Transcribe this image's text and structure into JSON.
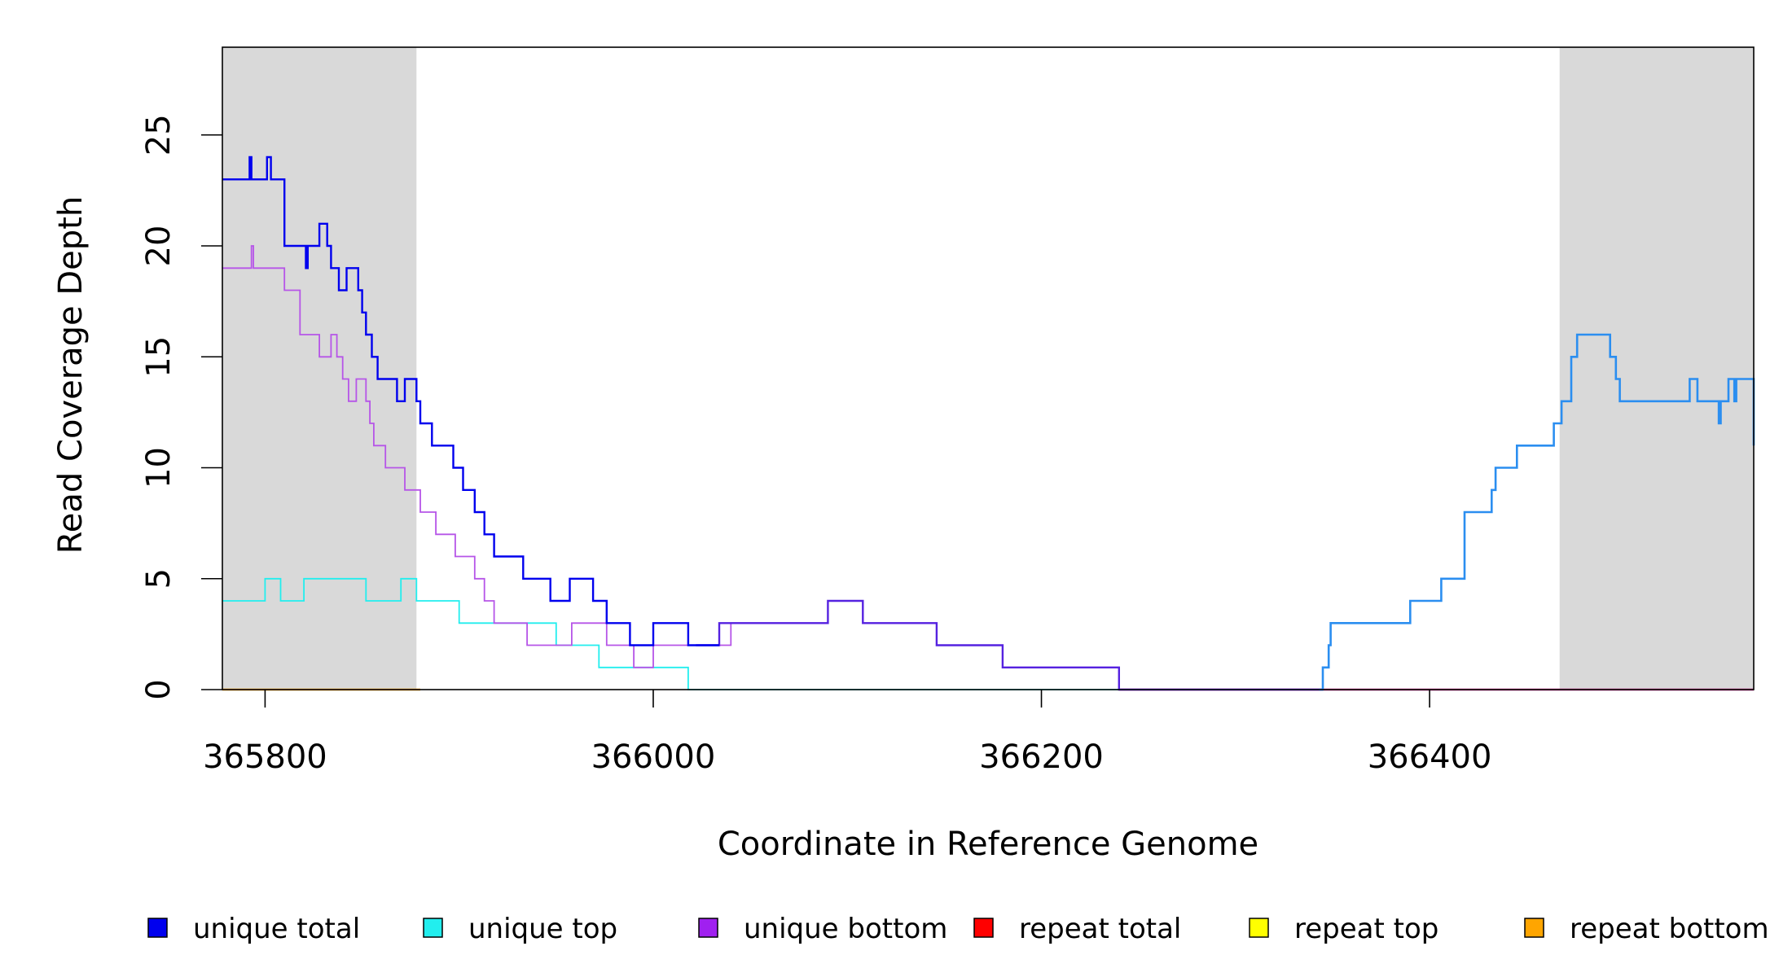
{
  "chart_data": {
    "type": "line",
    "title": "",
    "xlabel": "Coordinate in Reference Genome",
    "ylabel": "Read Coverage Depth",
    "xlim": [
      365778,
      366567
    ],
    "ylim": [
      0,
      29
    ],
    "x_ticks": [
      365800,
      366000,
      366200,
      366400
    ],
    "x_tick_labels": [
      "365800",
      "366000",
      "366200",
      "366400"
    ],
    "y_ticks": [
      0,
      5,
      10,
      15,
      20,
      25
    ],
    "y_tick_labels": [
      "0",
      "5",
      "10",
      "15",
      "20",
      "25"
    ],
    "shaded_regions": [
      [
        365778,
        365878
      ],
      [
        366467,
        366567
      ]
    ],
    "shade_color": "#d9d9d9",
    "grid": false,
    "legend_position": "bottom",
    "legend": [
      {
        "label": "unique total",
        "color": "#0000ee"
      },
      {
        "label": "unique top",
        "color": "#22eeee"
      },
      {
        "label": "unique bottom",
        "color": "#a020f0"
      },
      {
        "label": "repeat total",
        "color": "#ff0000"
      },
      {
        "label": "repeat top",
        "color": "#ffff00"
      },
      {
        "label": "repeat bottom",
        "color": "#ffa500"
      }
    ],
    "series": [
      {
        "key": "repeat_bottom",
        "color": "#ffa500",
        "width": 2.6,
        "points": [
          [
            365778,
            0
          ],
          [
            365880,
            0
          ]
        ]
      },
      {
        "key": "repeat_total_right",
        "color": "#d02090",
        "width": 2.4,
        "points": [
          [
            366240,
            0
          ],
          [
            366567,
            0
          ]
        ]
      },
      {
        "key": "unique_top",
        "color": "#22eeee",
        "width": 1.8,
        "points": [
          [
            365778,
            4
          ],
          [
            365800,
            4
          ],
          [
            365800,
            5
          ],
          [
            365808,
            5
          ],
          [
            365808,
            4
          ],
          [
            365820,
            4
          ],
          [
            365820,
            5
          ],
          [
            365852,
            5
          ],
          [
            365852,
            4
          ],
          [
            365870,
            4
          ],
          [
            365870,
            5
          ],
          [
            365878,
            5
          ],
          [
            365878,
            4
          ],
          [
            365900,
            4
          ],
          [
            365900,
            3
          ],
          [
            365930,
            3
          ],
          [
            365930,
            3
          ],
          [
            365950,
            3
          ],
          [
            365950,
            2
          ],
          [
            365972,
            2
          ],
          [
            365972,
            1
          ],
          [
            366018,
            1
          ],
          [
            366018,
            0
          ],
          [
            366240,
            0
          ]
        ]
      },
      {
        "key": "unique_bottom",
        "color": "#b655e8",
        "width": 1.8,
        "points": [
          [
            365778,
            19
          ],
          [
            365793,
            19
          ],
          [
            365793,
            20
          ],
          [
            365794,
            20
          ],
          [
            365794,
            19
          ],
          [
            365801,
            19
          ],
          [
            365801,
            19
          ],
          [
            365810,
            19
          ],
          [
            365810,
            18
          ],
          [
            365818,
            18
          ],
          [
            365818,
            16
          ],
          [
            365828,
            16
          ],
          [
            365828,
            15
          ],
          [
            365834,
            15
          ],
          [
            365834,
            16
          ],
          [
            365837,
            16
          ],
          [
            365837,
            15
          ],
          [
            365840,
            15
          ],
          [
            365840,
            14
          ],
          [
            365843,
            14
          ],
          [
            365843,
            13
          ],
          [
            365847,
            13
          ],
          [
            365847,
            14
          ],
          [
            365852,
            14
          ],
          [
            365852,
            13
          ],
          [
            365854,
            13
          ],
          [
            365854,
            12
          ],
          [
            365856,
            12
          ],
          [
            365856,
            11
          ],
          [
            365862,
            11
          ],
          [
            365862,
            10
          ],
          [
            365872,
            10
          ],
          [
            365872,
            9
          ],
          [
            365880,
            9
          ],
          [
            365880,
            8
          ],
          [
            365888,
            8
          ],
          [
            365888,
            7
          ],
          [
            365898,
            7
          ],
          [
            365898,
            6
          ],
          [
            365908,
            6
          ],
          [
            365908,
            5
          ],
          [
            365913,
            5
          ],
          [
            365913,
            4
          ],
          [
            365918,
            4
          ],
          [
            365918,
            3
          ],
          [
            365935,
            3
          ],
          [
            365935,
            2
          ],
          [
            365958,
            2
          ],
          [
            365958,
            3
          ],
          [
            365976,
            3
          ],
          [
            365976,
            2
          ],
          [
            365990,
            2
          ],
          [
            365990,
            1
          ],
          [
            366000,
            1
          ],
          [
            366000,
            2
          ],
          [
            366040,
            2
          ],
          [
            366040,
            3
          ],
          [
            366090,
            3
          ],
          [
            366090,
            4
          ],
          [
            366108,
            4
          ],
          [
            366108,
            3
          ],
          [
            366146,
            3
          ],
          [
            366146,
            2
          ],
          [
            366180,
            2
          ],
          [
            366180,
            1
          ],
          [
            366240,
            1
          ],
          [
            366240,
            0
          ]
        ]
      },
      {
        "key": "unique_bottom_overlay",
        "color": "#5522e0",
        "width": 2.4,
        "points": [
          [
            366022,
            2
          ],
          [
            366034,
            2
          ],
          [
            366034,
            3
          ],
          [
            366090,
            3
          ],
          [
            366090,
            4
          ],
          [
            366108,
            4
          ],
          [
            366108,
            3
          ],
          [
            366146,
            3
          ],
          [
            366146,
            2
          ],
          [
            366180,
            2
          ],
          [
            366180,
            1
          ],
          [
            366240,
            1
          ],
          [
            366240,
            0
          ],
          [
            366345,
            0
          ]
        ]
      },
      {
        "key": "unique_total",
        "color": "#0000ee",
        "width": 2.4,
        "points": [
          [
            365778,
            23
          ],
          [
            365792,
            23
          ],
          [
            365792,
            24
          ],
          [
            365793,
            24
          ],
          [
            365793,
            23
          ],
          [
            365801,
            23
          ],
          [
            365801,
            24
          ],
          [
            365803,
            24
          ],
          [
            365803,
            23
          ],
          [
            365808,
            23
          ],
          [
            365808,
            23
          ],
          [
            365810,
            23
          ],
          [
            365810,
            20
          ],
          [
            365821,
            20
          ],
          [
            365821,
            19
          ],
          [
            365822,
            19
          ],
          [
            365822,
            20
          ],
          [
            365828,
            20
          ],
          [
            365828,
            21
          ],
          [
            365832,
            21
          ],
          [
            365832,
            20
          ],
          [
            365834,
            20
          ],
          [
            365834,
            19
          ],
          [
            365838,
            19
          ],
          [
            365838,
            18
          ],
          [
            365842,
            18
          ],
          [
            365842,
            19
          ],
          [
            365848,
            19
          ],
          [
            365848,
            18
          ],
          [
            365850,
            18
          ],
          [
            365850,
            17
          ],
          [
            365852,
            17
          ],
          [
            365852,
            16
          ],
          [
            365855,
            16
          ],
          [
            365855,
            15
          ],
          [
            365858,
            15
          ],
          [
            365858,
            14
          ],
          [
            365868,
            14
          ],
          [
            365868,
            13
          ],
          [
            365872,
            13
          ],
          [
            365872,
            14
          ],
          [
            365878,
            14
          ],
          [
            365878,
            13
          ],
          [
            365880,
            13
          ],
          [
            365880,
            12
          ],
          [
            365886,
            12
          ],
          [
            365886,
            11
          ],
          [
            365897,
            11
          ],
          [
            365897,
            10
          ],
          [
            365902,
            10
          ],
          [
            365902,
            9
          ],
          [
            365908,
            9
          ],
          [
            365908,
            8
          ],
          [
            365913,
            8
          ],
          [
            365913,
            7
          ],
          [
            365918,
            7
          ],
          [
            365918,
            6
          ],
          [
            365933,
            6
          ],
          [
            365933,
            5
          ],
          [
            365947,
            5
          ],
          [
            365947,
            4
          ],
          [
            365957,
            4
          ],
          [
            365957,
            5
          ],
          [
            365969,
            5
          ],
          [
            365969,
            4
          ],
          [
            365976,
            4
          ],
          [
            365976,
            3
          ],
          [
            365988,
            3
          ],
          [
            365988,
            2
          ],
          [
            366000,
            2
          ],
          [
            366000,
            3
          ],
          [
            366018,
            3
          ],
          [
            366018,
            2
          ],
          [
            366034,
            2
          ]
        ]
      },
      {
        "key": "unique_total_right",
        "color": "#2b8ef0",
        "width": 2.6,
        "points": [
          [
            366343,
            0
          ],
          [
            366345,
            0
          ],
          [
            366345,
            1
          ],
          [
            366348,
            1
          ],
          [
            366348,
            2
          ],
          [
            366349,
            2
          ],
          [
            366349,
            3
          ],
          [
            366390,
            3
          ],
          [
            366390,
            4
          ],
          [
            366406,
            4
          ],
          [
            366406,
            5
          ],
          [
            366418,
            5
          ],
          [
            366418,
            8
          ],
          [
            366432,
            8
          ],
          [
            366432,
            9
          ],
          [
            366434,
            9
          ],
          [
            366434,
            10
          ],
          [
            366445,
            10
          ],
          [
            366445,
            11
          ],
          [
            366464,
            11
          ],
          [
            366464,
            12
          ],
          [
            366468,
            12
          ],
          [
            366468,
            13
          ],
          [
            366473,
            13
          ],
          [
            366473,
            15
          ],
          [
            366476,
            15
          ],
          [
            366476,
            16
          ],
          [
            366493,
            16
          ],
          [
            366493,
            15
          ],
          [
            366496,
            15
          ],
          [
            366496,
            14
          ],
          [
            366498,
            14
          ],
          [
            366498,
            13
          ],
          [
            366534,
            13
          ],
          [
            366534,
            14
          ],
          [
            366538,
            14
          ],
          [
            366538,
            13
          ],
          [
            366549,
            13
          ],
          [
            366549,
            12
          ],
          [
            366550,
            12
          ],
          [
            366550,
            13
          ],
          [
            366554,
            13
          ],
          [
            366554,
            14
          ],
          [
            366557,
            14
          ],
          [
            366557,
            13
          ],
          [
            366558,
            13
          ],
          [
            366558,
            14
          ],
          [
            366567,
            14
          ],
          [
            366567,
            11
          ]
        ]
      }
    ]
  }
}
